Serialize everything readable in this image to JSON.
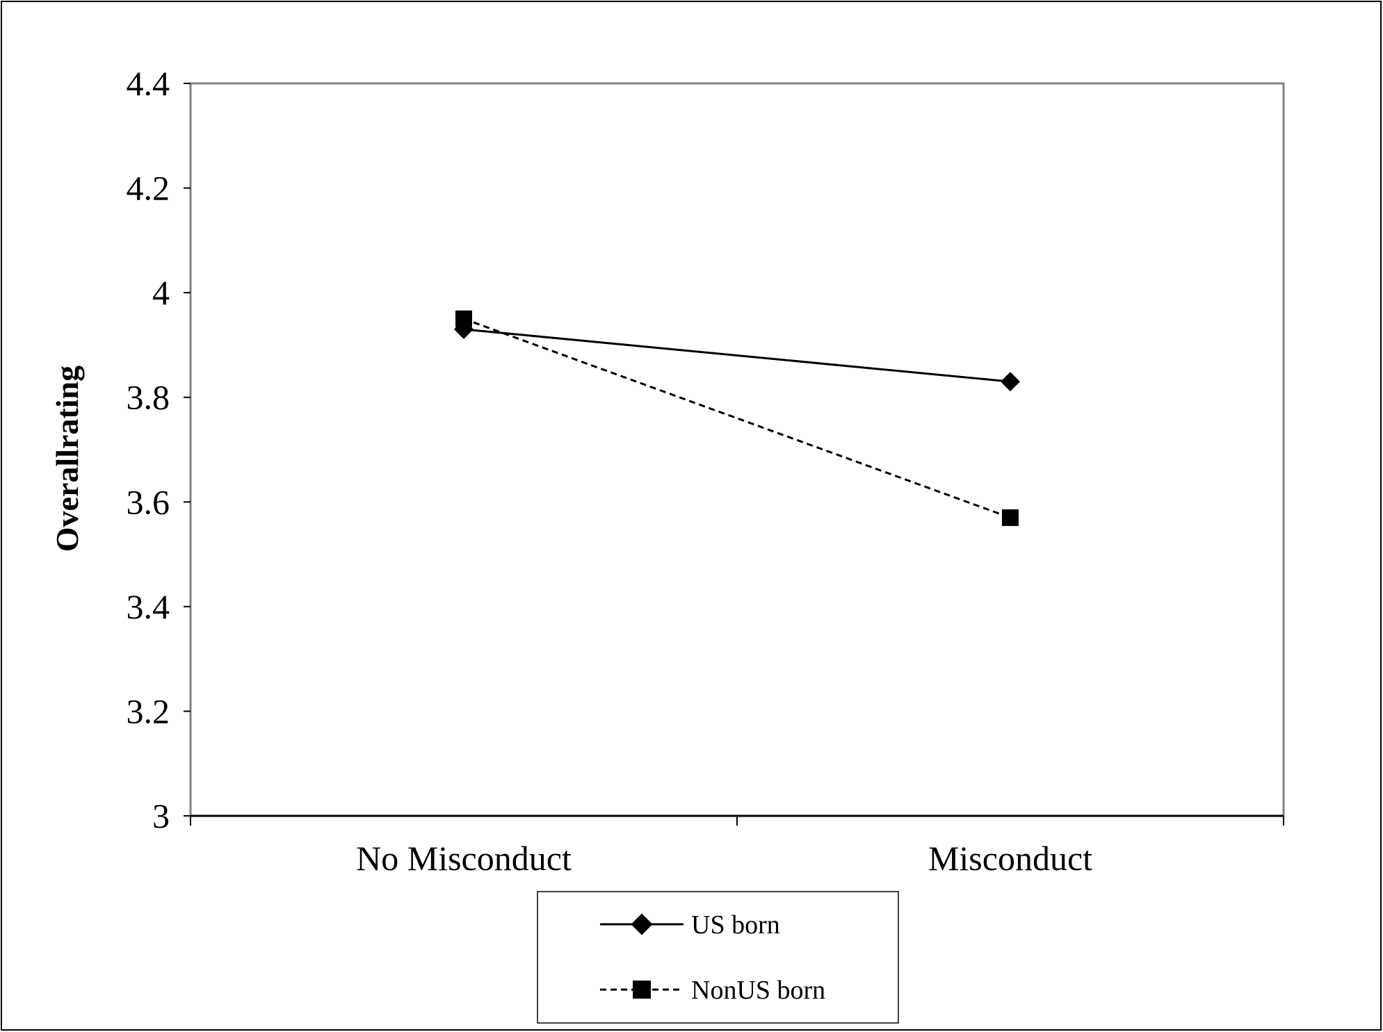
{
  "chart_data": {
    "type": "line",
    "title": "",
    "xlabel": "",
    "ylabel": "Overallrating",
    "categories": [
      "No Misconduct",
      "Misconduct"
    ],
    "ylim": [
      3,
      4.4
    ],
    "yticks": [
      "3",
      "3.2",
      "3.4",
      "3.6",
      "3.8",
      "4",
      "4.2",
      "4.4"
    ],
    "grid": false,
    "legend_position": "bottom-center",
    "series": [
      {
        "name": "US born",
        "values": [
          3.93,
          3.83
        ],
        "line_style": "solid",
        "marker": "diamond",
        "color": "#000000"
      },
      {
        "name": "NonUS born",
        "values": [
          3.95,
          3.57
        ],
        "line_style": "dashed",
        "marker": "square",
        "color": "#000000"
      }
    ]
  }
}
